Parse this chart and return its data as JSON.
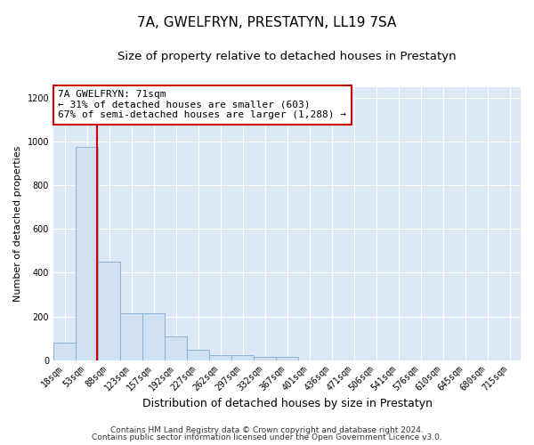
{
  "title": "7A, GWELFRYN, PRESTATYN, LL19 7SA",
  "subtitle": "Size of property relative to detached houses in Prestatyn",
  "xlabel": "Distribution of detached houses by size in Prestatyn",
  "ylabel": "Number of detached properties",
  "bar_labels": [
    "18sqm",
    "53sqm",
    "88sqm",
    "123sqm",
    "157sqm",
    "192sqm",
    "227sqm",
    "262sqm",
    "297sqm",
    "332sqm",
    "367sqm",
    "401sqm",
    "436sqm",
    "471sqm",
    "506sqm",
    "541sqm",
    "576sqm",
    "610sqm",
    "645sqm",
    "680sqm",
    "715sqm"
  ],
  "bar_values": [
    80,
    975,
    450,
    215,
    215,
    110,
    48,
    22,
    22,
    15,
    15,
    0,
    0,
    0,
    0,
    0,
    0,
    0,
    0,
    0,
    0
  ],
  "bar_color": "#cfe0f0",
  "bar_edge_color": "#8ab4d8",
  "vline_x": 1.47,
  "vline_color": "#cc0000",
  "annotation_text": "7A GWELFRYN: 71sqm\n← 31% of detached houses are smaller (603)\n67% of semi-detached houses are larger (1,288) →",
  "annotation_box_facecolor": "#ffffff",
  "annotation_box_edgecolor": "#cc0000",
  "ylim": [
    0,
    1250
  ],
  "yticks": [
    0,
    200,
    400,
    600,
    800,
    1000,
    1200
  ],
  "plot_bg_color": "#dce8f5",
  "fig_bg_color": "#ffffff",
  "grid_color": "#ffffff",
  "footer1": "Contains HM Land Registry data © Crown copyright and database right 2024.",
  "footer2": "Contains public sector information licensed under the Open Government Licence v3.0.",
  "title_fontsize": 11,
  "subtitle_fontsize": 9.5,
  "xlabel_fontsize": 9,
  "ylabel_fontsize": 8,
  "tick_fontsize": 7,
  "annotation_fontsize": 8,
  "footer_fontsize": 6.5
}
